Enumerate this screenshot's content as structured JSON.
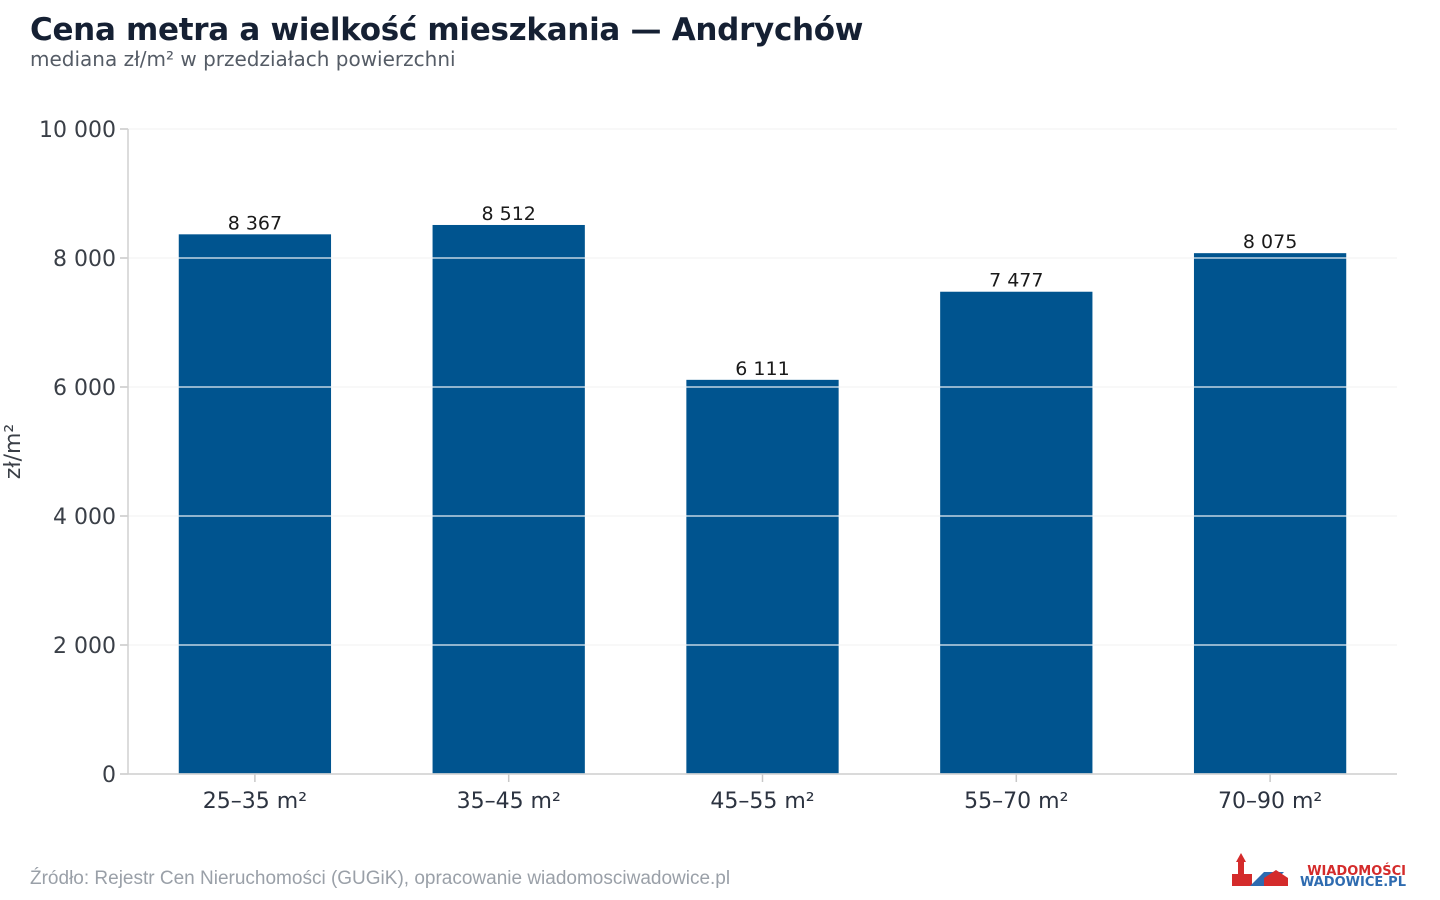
{
  "chart_data": {
    "type": "bar",
    "title": "Cena metra a wielkość mieszkania — Andrychów",
    "subtitle": "mediana zł/m² w przedziałach powierzchni",
    "xlabel": "",
    "ylabel": "zł/m²",
    "categories": [
      "25–35 m²",
      "35–45 m²",
      "45–55 m²",
      "55–70 m²",
      "70–90 m²"
    ],
    "values": [
      8367,
      8512,
      6111,
      7477,
      8075
    ],
    "value_labels": [
      "8 367",
      "8 512",
      "6 111",
      "7 477",
      "8 075"
    ],
    "ylim": [
      0,
      10000
    ],
    "yticks": [
      0,
      2000,
      4000,
      6000,
      8000,
      10000
    ],
    "ytick_labels": [
      "0",
      "2 000",
      "4 000",
      "6 000",
      "8 000",
      "10 000"
    ],
    "grid": "horizontal",
    "legend": "none",
    "bar_color": "#00548f",
    "grid_color": "#e6e6e6"
  },
  "source": "Źródło: Rejestr Cen Nieruchomości (GUGiK), opracowanie wiadomosciwadowice.pl",
  "logo": {
    "line1": "WIADOMOŚCI",
    "line2": "WADOWICE.PL",
    "icon": "church-tower-icon",
    "color_red": "#d42b2b",
    "color_blue": "#2e6bb0"
  }
}
